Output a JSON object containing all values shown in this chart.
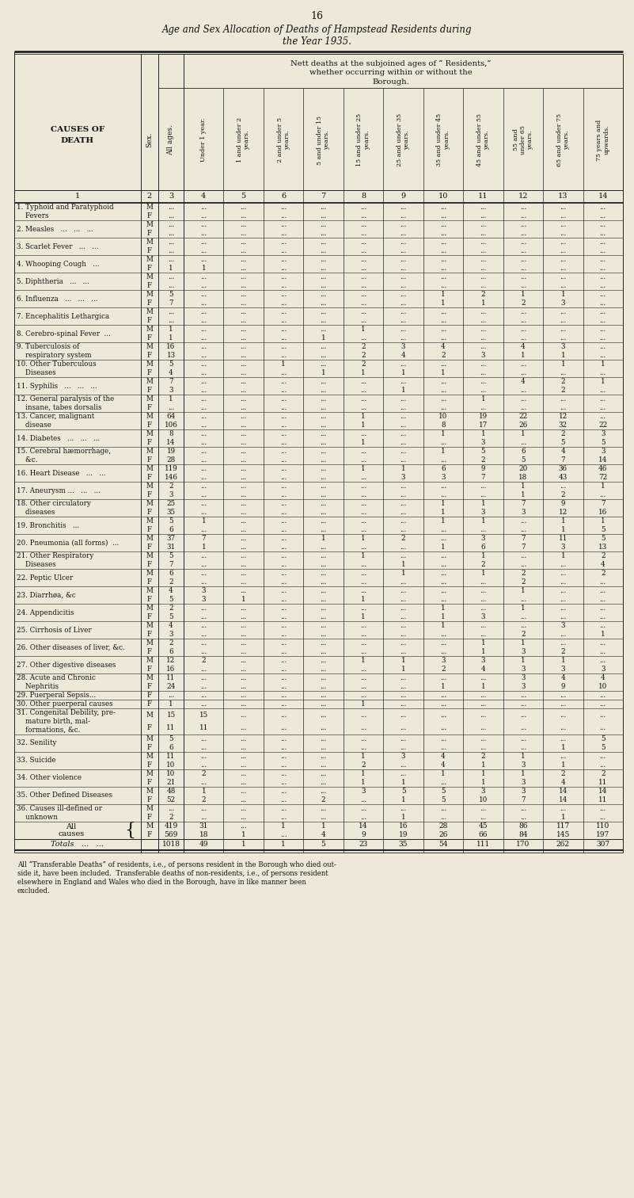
{
  "page_number": "16",
  "title_line1": "Age and Sex Allocation of Deaths of Hampstead Residents during",
  "title_line2": "the Year 1935.",
  "col_header_labels": [
    "Under 1 year.",
    "1 and under 2\nyears.",
    "2 and under 5\nyears.",
    "5 and under 15\nyears.",
    "15 and under 25\nyears.",
    "25 and under 35\nyears.",
    "35 and under 45\nyears.",
    "45 and under 55\nyears.",
    "55 and\nunder 65\nyears.",
    "65 and under 75\nyears.",
    "75 years and\nupwards."
  ],
  "rows": [
    {
      "num": "1.",
      "name": "Typhoid and Paratyphoid\nFevers",
      "M": [
        "...",
        "...",
        "...",
        "...",
        "...",
        "...",
        "...",
        "...",
        "...",
        "...",
        "...",
        "..."
      ],
      "F": [
        "...",
        "...",
        "...",
        "...",
        "...",
        "...",
        "...",
        "...",
        "...",
        "...",
        "...",
        "..."
      ]
    },
    {
      "num": "2.",
      "name": "Measles   ...   ...   ...",
      "M": [
        "...",
        "...",
        "...",
        "...",
        "...",
        "...",
        "...",
        "...",
        "...",
        "...",
        "...",
        "..."
      ],
      "F": [
        "...",
        "...",
        "...",
        "...",
        "...",
        "...",
        "...",
        "...",
        "...",
        "...",
        "...",
        "..."
      ]
    },
    {
      "num": "3.",
      "name": "Scarlet Fever   ...   ...",
      "M": [
        "...",
        "...",
        "...",
        "...",
        "...",
        "...",
        "...",
        "...",
        "...",
        "...",
        "...",
        "..."
      ],
      "F": [
        "...",
        "...",
        "...",
        "...",
        "...",
        "...",
        "...",
        "...",
        "...",
        "...",
        "...",
        "..."
      ]
    },
    {
      "num": "4.",
      "name": "Whooping Cough   ...",
      "M": [
        "...",
        "...",
        "...",
        "...",
        "...",
        "...",
        "...",
        "...",
        "...",
        "...",
        "...",
        "..."
      ],
      "F": [
        "1",
        "1",
        "...",
        "...",
        "...",
        "...",
        "...",
        "...",
        "...",
        "...",
        "...",
        "..."
      ]
    },
    {
      "num": "5.",
      "name": "Diphtheria   ...   ...",
      "M": [
        "...",
        "...",
        "...",
        "...",
        "...",
        "...",
        "...",
        "...",
        "...",
        "...",
        "...",
        "..."
      ],
      "F": [
        "...",
        "...",
        "...",
        "...",
        "...",
        "...",
        "...",
        "...",
        "...",
        "...",
        "...",
        "..."
      ]
    },
    {
      "num": "6.",
      "name": "Influenza   ...   ...   ...",
      "M": [
        "5",
        "...",
        "...",
        "...",
        "...",
        "...",
        "...",
        "1",
        "2",
        "1",
        "1",
        "..."
      ],
      "F": [
        "7",
        "...",
        "...",
        "...",
        "...",
        "...",
        "...",
        "1",
        "1",
        "2",
        "3",
        "..."
      ]
    },
    {
      "num": "7.",
      "name": "Encephalitis Lethargica",
      "M": [
        "...",
        "...",
        "...",
        "...",
        "...",
        "...",
        "...",
        "...",
        "...",
        "...",
        "...",
        "..."
      ],
      "F": [
        "...",
        "...",
        "...",
        "...",
        "...",
        "...",
        "...",
        "...",
        "...",
        "...",
        "...",
        "..."
      ]
    },
    {
      "num": "8.",
      "name": "Cerebro-spinal Fever  ...",
      "M": [
        "1",
        "...",
        "...",
        "...",
        "...",
        "1",
        "...",
        "...",
        "...",
        "...",
        "...",
        "..."
      ],
      "F": [
        "1",
        "...",
        "...",
        "...",
        "1",
        "...",
        "...",
        "...",
        "...",
        "...",
        "...",
        "..."
      ]
    },
    {
      "num": "9.",
      "name": "Tuberculosis of\nrespiratory system",
      "M": [
        "16",
        "...",
        "...",
        "...",
        "...",
        "2",
        "3",
        "4",
        "...",
        "4",
        "3",
        "..."
      ],
      "F": [
        "13",
        "...",
        "...",
        "...",
        "...",
        "2",
        "4",
        "2",
        "3",
        "1",
        "1",
        "..."
      ]
    },
    {
      "num": "10.",
      "name": "Other Tuberculous\nDiseases",
      "M": [
        "5",
        "...",
        "...",
        "1",
        "...",
        "2",
        "...",
        "...",
        "...",
        "...",
        "1",
        "1"
      ],
      "F": [
        "4",
        "...",
        "...",
        "...",
        "1",
        "1",
        "1",
        "1",
        "...",
        "...",
        "...",
        "..."
      ]
    },
    {
      "num": "11.",
      "name": "Syphilis   ...   ...   ...",
      "M": [
        "7",
        "...",
        "...",
        "...",
        "...",
        "...",
        "...",
        "...",
        "...",
        "4",
        "2",
        "1"
      ],
      "F": [
        "3",
        "...",
        "...",
        "...",
        "...",
        "...",
        "1",
        "...",
        "...",
        "...",
        "2",
        "..."
      ]
    },
    {
      "num": "12.",
      "name": "General paralysis of the\ninsane, tabes dorsalis",
      "M": [
        "1",
        "...",
        "...",
        "...",
        "...",
        "...",
        "...",
        "...",
        "1",
        "...",
        "...",
        "..."
      ],
      "F": [
        "...",
        "...",
        "...",
        "...",
        "...",
        "...",
        "...",
        "...",
        "...",
        "...",
        "...",
        "..."
      ]
    },
    {
      "num": "13.",
      "name": "Cancer, malignant\ndisease",
      "M": [
        "64",
        "...",
        "...",
        "...",
        "...",
        "1",
        "...",
        "10",
        "19",
        "22",
        "12",
        "..."
      ],
      "F": [
        "106",
        "...",
        "...",
        "...",
        "...",
        "1",
        "...",
        "8",
        "17",
        "26",
        "32",
        "22"
      ]
    },
    {
      "num": "14.",
      "name": "Diabetes   ...   ...   ...",
      "M": [
        "8",
        "...",
        "...",
        "...",
        "...",
        "...",
        "...",
        "1",
        "1",
        "1",
        "2",
        "3"
      ],
      "F": [
        "14",
        "...",
        "...",
        "...",
        "...",
        "1",
        "...",
        "...",
        "3",
        "...",
        "5",
        "5"
      ]
    },
    {
      "num": "15.",
      "name": "Cerebral hæmorrhage,\n&c.",
      "M": [
        "19",
        "...",
        "...",
        "...",
        "...",
        "...",
        "...",
        "1",
        "5",
        "6",
        "4",
        "3"
      ],
      "F": [
        "28",
        "...",
        "...",
        "...",
        "...",
        "...",
        "...",
        "...",
        "2",
        "5",
        "7",
        "14"
      ]
    },
    {
      "num": "16.",
      "name": "Heart Disease   ...   ...",
      "M": [
        "119",
        "...",
        "...",
        "...",
        "...",
        "1",
        "1",
        "6",
        "9",
        "20",
        "36",
        "46"
      ],
      "F": [
        "146",
        "...",
        "...",
        "...",
        "...",
        "...",
        "3",
        "3",
        "7",
        "18",
        "43",
        "72"
      ]
    },
    {
      "num": "17.",
      "name": "Aneurysm ...   ...   ...",
      "M": [
        "2",
        "...",
        "...",
        "...",
        "...",
        "...",
        "...",
        "...",
        "...",
        "1",
        "...",
        "1"
      ],
      "F": [
        "3",
        "...",
        "...",
        "...",
        "...",
        "...",
        "...",
        "...",
        "...",
        "1",
        "2",
        "..."
      ]
    },
    {
      "num": "18.",
      "name": "Other circulatory\ndiseases",
      "M": [
        "25",
        "...",
        "...",
        "...",
        "...",
        "...",
        "...",
        "1",
        "1",
        "7",
        "9",
        "7"
      ],
      "F": [
        "35",
        "...",
        "...",
        "...",
        "...",
        "...",
        "...",
        "1",
        "3",
        "3",
        "12",
        "16"
      ]
    },
    {
      "num": "19.",
      "name": "Bronchitis   ...",
      "M": [
        "5",
        "1",
        "...",
        "...",
        "...",
        "...",
        "...",
        "1",
        "1",
        "...",
        "1",
        "1"
      ],
      "F": [
        "6",
        "...",
        "...",
        "...",
        "...",
        "...",
        "...",
        "...",
        "...",
        "...",
        "1",
        "5"
      ]
    },
    {
      "num": "20.",
      "name": "Pneumonia (all forms)  ...",
      "M": [
        "37",
        "7",
        "...",
        "...",
        "1",
        "1",
        "2",
        "...",
        "3",
        "7",
        "11",
        "5"
      ],
      "F": [
        "31",
        "1",
        "...",
        "...",
        "...",
        "...",
        "...",
        "1",
        "6",
        "7",
        "3",
        "13"
      ]
    },
    {
      "num": "21.",
      "name": "Other Respiratory\nDiseases",
      "M": [
        "5",
        "...",
        "...",
        "...",
        "...",
        "1",
        "...",
        "...",
        "1",
        "...",
        "1",
        "2"
      ],
      "F": [
        "7",
        "...",
        "...",
        "...",
        "...",
        "...",
        "1",
        "...",
        "2",
        "...",
        "...",
        "4"
      ]
    },
    {
      "num": "22.",
      "name": "Peptic Ulcer",
      "M": [
        "6",
        "...",
        "...",
        "...",
        "...",
        "...",
        "1",
        "...",
        "1",
        "2",
        "...",
        "2"
      ],
      "F": [
        "2",
        "...",
        "...",
        "...",
        "...",
        "...",
        "...",
        "...",
        "...",
        "2",
        "...",
        "..."
      ]
    },
    {
      "num": "23.",
      "name": "Diarrhøa, &c",
      "M": [
        "4",
        "3",
        "...",
        "...",
        "...",
        "...",
        "...",
        "...",
        "...",
        "1",
        "...",
        "..."
      ],
      "F": [
        "5",
        "3",
        "1",
        "...",
        "...",
        "1",
        "...",
        "...",
        "...",
        "...",
        "...",
        "..."
      ]
    },
    {
      "num": "24.",
      "name": "Appendicitis",
      "M": [
        "2",
        "...",
        "...",
        "...",
        "...",
        "...",
        "...",
        "1",
        "...",
        "1",
        "...",
        "..."
      ],
      "F": [
        "5",
        "...",
        "...",
        "...",
        "...",
        "1",
        "...",
        "1",
        "3",
        "...",
        "...",
        "..."
      ]
    },
    {
      "num": "25.",
      "name": "Cirrhosis of Liver",
      "M": [
        "4",
        "...",
        "...",
        "...",
        "...",
        "...",
        "...",
        "1",
        "...",
        "...",
        "3",
        "..."
      ],
      "F": [
        "3",
        "...",
        "...",
        "...",
        "...",
        "...",
        "...",
        "...",
        "...",
        "2",
        "...",
        "1"
      ]
    },
    {
      "num": "26.",
      "name": "Other diseases of liver, &c.",
      "M": [
        "2",
        "...",
        "...",
        "...",
        "...",
        "...",
        "...",
        "...",
        "1",
        "1",
        "...",
        "..."
      ],
      "F": [
        "6",
        "...",
        "...",
        "...",
        "...",
        "...",
        "...",
        "...",
        "1",
        "3",
        "2",
        "..."
      ]
    },
    {
      "num": "27.",
      "name": "Other digestive diseases",
      "M": [
        "12",
        "2",
        "...",
        "...",
        "...",
        "1",
        "1",
        "3",
        "3",
        "1",
        "1",
        "..."
      ],
      "F": [
        "16",
        "...",
        "...",
        "...",
        "...",
        "...",
        "1",
        "2",
        "4",
        "3",
        "3",
        "3"
      ]
    },
    {
      "num": "28.",
      "name": "Acute and Chronic\nNephritis",
      "M": [
        "11",
        "...",
        "...",
        "...",
        "...",
        "...",
        "...",
        "...",
        "...",
        "3",
        "4",
        "4"
      ],
      "F": [
        "24",
        "...",
        "...",
        "...",
        "...",
        "...",
        "...",
        "1",
        "1",
        "3",
        "9",
        "10"
      ]
    },
    {
      "num": "29.",
      "name": "Puerperal Sepsis...",
      "F_only": true,
      "F": [
        "...",
        "...",
        "...",
        "...",
        "...",
        "...",
        "...",
        "...",
        "...",
        "...",
        "...",
        "..."
      ]
    },
    {
      "num": "30.",
      "name": "Other puerperal causes",
      "F_only": true,
      "F": [
        "1",
        "...",
        "...",
        "...",
        "...",
        "1",
        "...",
        "...",
        "...",
        "...",
        "...",
        "..."
      ]
    },
    {
      "num": "31.",
      "name": "Congenital Debility, pre-\nmature birth, mal-\nformations, &c.",
      "M": [
        "15",
        "15",
        "...",
        "...",
        "...",
        "...",
        "...",
        "...",
        "...",
        "...",
        "...",
        "..."
      ],
      "F": [
        "11",
        "11",
        "...",
        "...",
        "...",
        "...",
        "...",
        "...",
        "...",
        "...",
        "...",
        "..."
      ]
    },
    {
      "num": "32.",
      "name": "Senility",
      "M": [
        "5",
        "...",
        "...",
        "...",
        "...",
        "...",
        "...",
        "...",
        "...",
        "...",
        "...",
        "5"
      ],
      "F": [
        "6",
        "...",
        "...",
        "...",
        "...",
        "...",
        "...",
        "...",
        "...",
        "...",
        "1",
        "5"
      ]
    },
    {
      "num": "33.",
      "name": "Suicide",
      "M": [
        "11",
        "...",
        "...",
        "...",
        "...",
        "1",
        "3",
        "4",
        "2",
        "1",
        "...",
        "..."
      ],
      "F": [
        "10",
        "...",
        "...",
        "...",
        "...",
        "2",
        "...",
        "4",
        "1",
        "3",
        "1",
        "..."
      ]
    },
    {
      "num": "34.",
      "name": "Other violence",
      "M": [
        "10",
        "2",
        "...",
        "...",
        "...",
        "1",
        "...",
        "1",
        "1",
        "1",
        "2",
        "2"
      ],
      "F": [
        "21",
        "...",
        "...",
        "...",
        "...",
        "1",
        "1",
        "...",
        "1",
        "3",
        "4",
        "11"
      ]
    },
    {
      "num": "35.",
      "name": "Other Defined Diseases",
      "M": [
        "48",
        "1",
        "...",
        "...",
        "...",
        "3",
        "5",
        "5",
        "3",
        "3",
        "14",
        "14"
      ],
      "F": [
        "52",
        "2",
        "...",
        "...",
        "2",
        "...",
        "1",
        "5",
        "10",
        "7",
        "14",
        "11"
      ]
    },
    {
      "num": "36.",
      "name": "Causes ill-defined or\nunknown",
      "M": [
        "...",
        "...",
        "...",
        "...",
        "...",
        "...",
        "...",
        "...",
        "...",
        "...",
        "...",
        "..."
      ],
      "F": [
        "2",
        "...",
        "...",
        "...",
        "...",
        "...",
        "1",
        "...",
        "...",
        "...",
        "1",
        "..."
      ]
    }
  ],
  "totals_M": [
    "419",
    "31",
    "...",
    "1",
    "1",
    "14",
    "16",
    "28",
    "45",
    "86",
    "117",
    "110"
  ],
  "totals_F": [
    "569",
    "18",
    "1",
    "...",
    "4",
    "9",
    "19",
    "26",
    "66",
    "84",
    "145",
    "197"
  ],
  "grand_total": [
    "1018",
    "49",
    "1",
    "1",
    "5",
    "23",
    "35",
    "54",
    "111",
    "170",
    "262",
    "307"
  ],
  "footer_line1": "All “Transferable Deaths” of residents, i.e., of persons resident in the Borough who died out-",
  "footer_line2": "side it, have been included.  Transferable deaths of non-residents, i.e., of persons resident",
  "footer_line3": "elsewhere in England and Wales who died in the Borough, have in like manner been",
  "footer_line4": "excluded.",
  "bg_color": "#ede8d8",
  "text_color": "#111111",
  "line_color": "#222222"
}
